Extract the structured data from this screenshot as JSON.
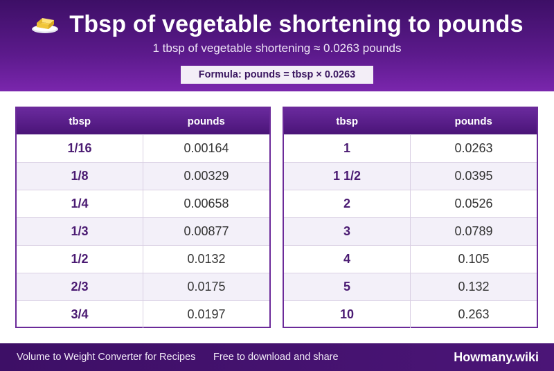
{
  "header": {
    "icon": "butter-icon",
    "title": "Tbsp of vegetable shortening to pounds",
    "subtitle": "1 tbsp of vegetable shortening ≈ 0.0263 pounds",
    "formula": "Formula: pounds = tbsp × 0.0263"
  },
  "tables": [
    {
      "headers": [
        "tbsp",
        "pounds"
      ],
      "rows": [
        [
          "1/16",
          "0.00164"
        ],
        [
          "1/8",
          "0.00329"
        ],
        [
          "1/4",
          "0.00658"
        ],
        [
          "1/3",
          "0.00877"
        ],
        [
          "1/2",
          "0.0132"
        ],
        [
          "2/3",
          "0.0175"
        ],
        [
          "3/4",
          "0.0197"
        ]
      ]
    },
    {
      "headers": [
        "tbsp",
        "pounds"
      ],
      "rows": [
        [
          "1",
          "0.0263"
        ],
        [
          "1 1/2",
          "0.0395"
        ],
        [
          "2",
          "0.0526"
        ],
        [
          "3",
          "0.0789"
        ],
        [
          "4",
          "0.105"
        ],
        [
          "5",
          "0.132"
        ],
        [
          "10",
          "0.263"
        ]
      ]
    }
  ],
  "footer": {
    "left": "Volume to Weight Converter for Recipes",
    "middle": "Free to download and share",
    "brand": "Howmany.wiki"
  },
  "colors": {
    "header_purple": "#5c1a8c",
    "accent_purple": "#4a1a72",
    "row_alt": "#f3f0f9"
  }
}
